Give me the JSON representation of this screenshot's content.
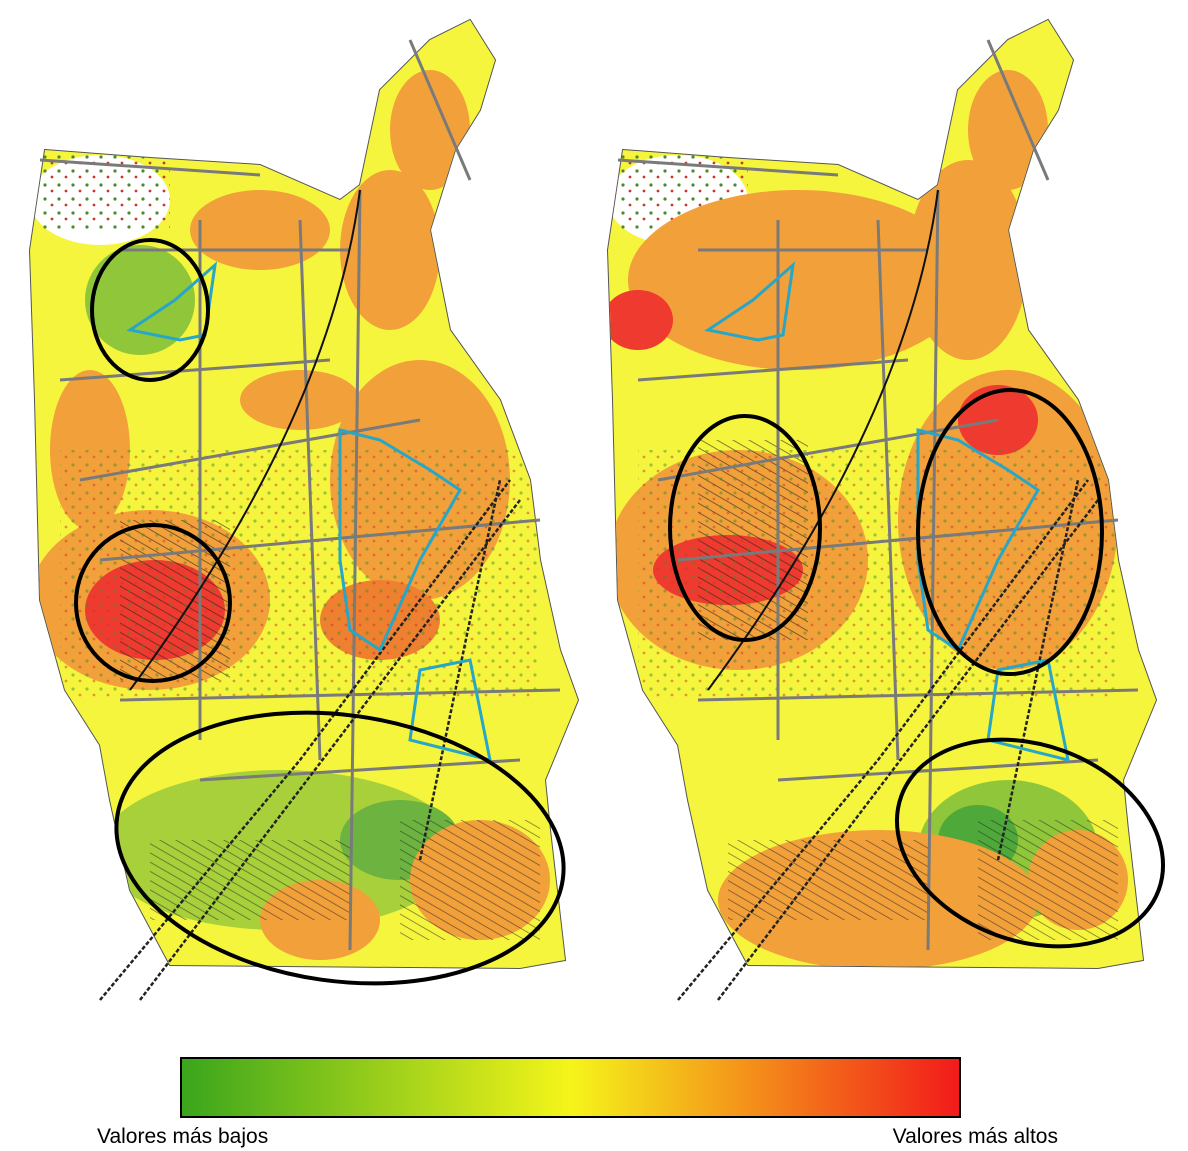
{
  "legend": {
    "low_label": "Valores más bajos",
    "high_label": "Valores más altos"
  }
}
